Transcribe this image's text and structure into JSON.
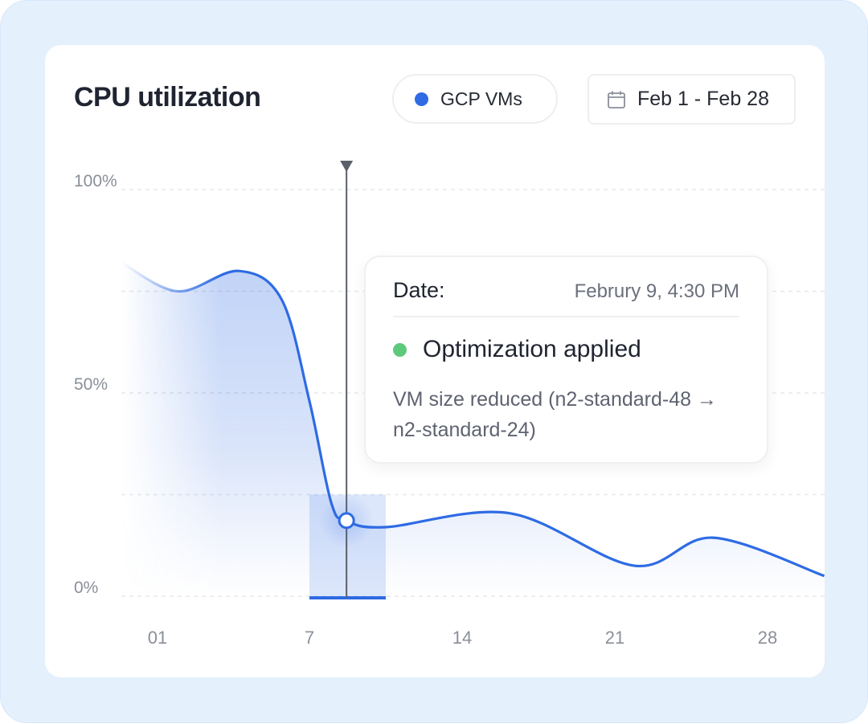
{
  "header": {
    "title": "CPU utilization",
    "filter_label": "GCP VMs",
    "filter_color": "#2e6be4",
    "date_range": "Feb 1 - Feb 28",
    "date_icon": "calendar-icon"
  },
  "tooltip": {
    "label": "Date:",
    "date": "Februry 9, 4:30 PM",
    "status": "Optimization applied",
    "status_color": "#5ec97a",
    "description": "VM size reduced (n2-standard-48 → n2-standard-24)"
  },
  "chart_data": {
    "type": "area",
    "title": "CPU utilization",
    "xlabel": "",
    "ylabel": "",
    "x_ticks": [
      1,
      7,
      14,
      21,
      28
    ],
    "x_tick_labels": [
      "01",
      "7",
      "14",
      "21",
      "28"
    ],
    "y_ticks": [
      0,
      25,
      50,
      75,
      100
    ],
    "y_tick_labels": [
      "0%",
      "",
      "50%",
      "",
      "100%"
    ],
    "ylim": [
      0,
      100
    ],
    "grid": true,
    "line_color": "#2e6be4",
    "series": [
      {
        "x": [
          -0.4,
          1.8,
          4.2,
          5.9,
          7,
          8,
          8.7,
          10.5,
          16.2,
          21.9,
          25.5,
          30.6
        ],
        "y": [
          82,
          75,
          80,
          73,
          48,
          23,
          18.6,
          17,
          20.4,
          7.5,
          14.4,
          5
        ]
      }
    ],
    "highlight_range": [
      7,
      10.5
    ],
    "marker": {
      "x": 8.7,
      "y": 18.6
    }
  }
}
